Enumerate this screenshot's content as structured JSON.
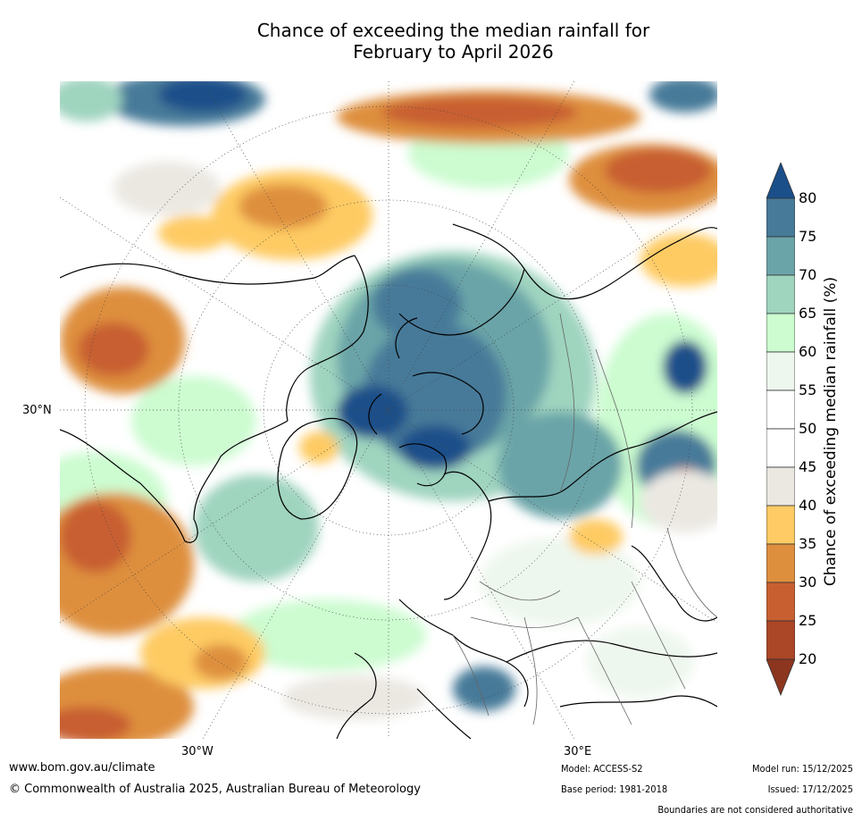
{
  "title_line1": "Chance of exceeding the median rainfall for",
  "title_line2": "February to April 2026",
  "map": {
    "lat_label": "30°N",
    "lon_labels": [
      "30°W",
      "30°E"
    ]
  },
  "colorbar": {
    "title": "Chance of exceeding median rainfall (%)",
    "ticks": [
      "80",
      "75",
      "70",
      "65",
      "60",
      "55",
      "50",
      "45",
      "40",
      "35",
      "30",
      "25",
      "20"
    ],
    "colors": [
      "#1b4f8a",
      "#477a99",
      "#6aa4a8",
      "#9fd4bf",
      "#ccfcd0",
      "#eef7ee",
      "#ffffff",
      "#ffffff",
      "#ebe8e2",
      "#fecb64",
      "#de8f3e",
      "#c85f30",
      "#ab4626",
      "#8c3620"
    ]
  },
  "footer": {
    "url": "www.bom.gov.au/climate",
    "copyright": "© Commonwealth of Australia 2025, Australian Bureau of Meteorology",
    "model": "Model: ACCESS-S2",
    "base_period": "Base period: 1981-2018",
    "model_run": "Model run: 15/12/2025",
    "issued": "Issued: 17/12/2025",
    "disclaimer": "Boundaries are not considered authoritative"
  }
}
